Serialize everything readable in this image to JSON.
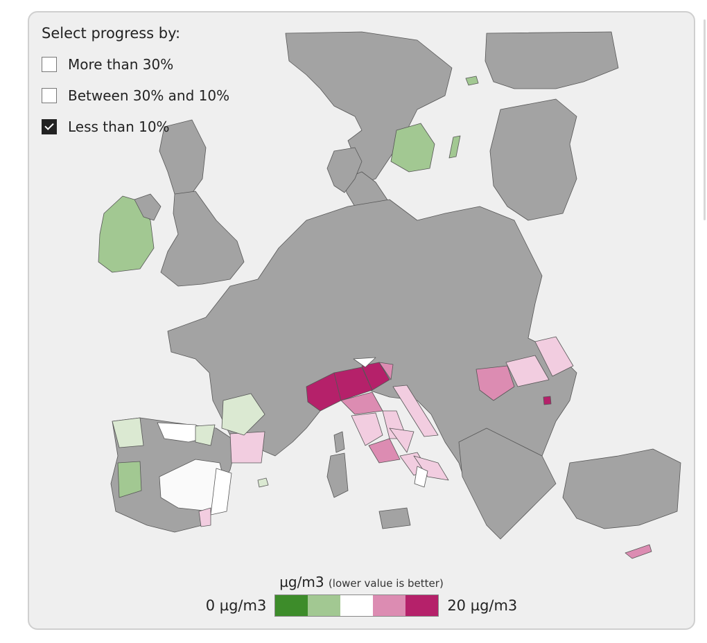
{
  "filters": {
    "title": "Select progress by:",
    "options": [
      {
        "label": "More than 30%",
        "checked": false
      },
      {
        "label": "Between 30% and 10%",
        "checked": false
      },
      {
        "label": "Less than 10%",
        "checked": true
      }
    ]
  },
  "legend": {
    "unit": "µg/m3",
    "note": "(lower value is better)",
    "min_label": "0 µg/m3",
    "max_label": "20 µg/m3",
    "colors": [
      "#3d8c2a",
      "#a2c892",
      "#ffffff",
      "#dc8cb2",
      "#b5216a"
    ]
  },
  "map_colors": {
    "land": "#a3a3a3",
    "border": "#555555",
    "sea": "#efefef"
  }
}
